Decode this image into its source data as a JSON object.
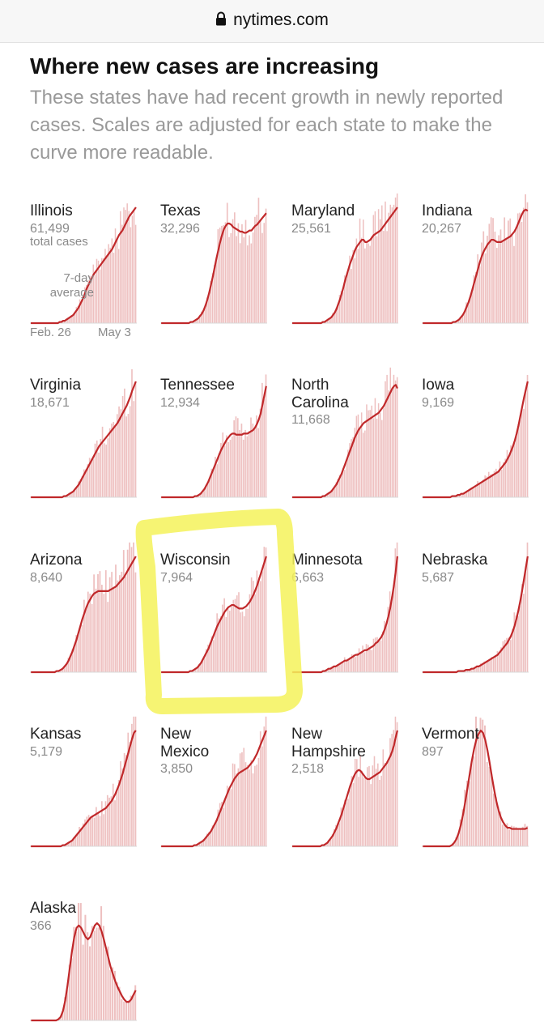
{
  "browser": {
    "url": "nytimes.com",
    "lock_icon": "lock-icon"
  },
  "article": {
    "headline": "Where new cases are increasing",
    "subhead": "These states have had recent growth in newly reported cases. Scales are adjusted for each state to make the curve more readable."
  },
  "legend": {
    "total_label": "total cases",
    "avg_label_1": "7-day",
    "avg_label_2": "average",
    "x_start": "Feb. 26",
    "x_end": "May 3"
  },
  "colors": {
    "line": "#c0282a",
    "bar": "#eec0c0",
    "highlight": "#f4f25a"
  },
  "chart_data": {
    "type": "bar",
    "x_range": [
      "Feb. 26",
      "May 3"
    ],
    "states": [
      {
        "name": "Illinois",
        "total": "61,499",
        "values": [
          0,
          0,
          0,
          0,
          0,
          0,
          0,
          0,
          0,
          0,
          0,
          0,
          0,
          0,
          0,
          0,
          0,
          1,
          1,
          2,
          2,
          3,
          4,
          5,
          6,
          7,
          9,
          11,
          13,
          16,
          19,
          22,
          26,
          30,
          33,
          36,
          39,
          42,
          44,
          46,
          48,
          50,
          52,
          54,
          56,
          58,
          60,
          62,
          64,
          67,
          70,
          73,
          76,
          78,
          80,
          83,
          86,
          89,
          92,
          94,
          96,
          98,
          100
        ]
      },
      {
        "name": "Texas",
        "total": "32,296",
        "values": [
          0,
          0,
          0,
          0,
          0,
          0,
          0,
          0,
          0,
          0,
          0,
          0,
          0,
          0,
          0,
          0,
          1,
          1,
          2,
          3,
          4,
          6,
          8,
          11,
          15,
          20,
          26,
          33,
          40,
          48,
          56,
          63,
          70,
          76,
          81,
          84,
          86,
          86,
          85,
          83,
          82,
          81,
          80,
          79,
          79,
          78,
          78,
          79,
          80,
          80,
          82,
          84,
          85,
          87,
          89,
          91,
          93,
          95
        ]
      },
      {
        "name": "Maryland",
        "total": "25,561",
        "values": [
          0,
          0,
          0,
          0,
          0,
          0,
          0,
          0,
          0,
          0,
          0,
          0,
          0,
          0,
          0,
          0,
          0,
          0,
          1,
          1,
          2,
          3,
          4,
          5,
          7,
          9,
          12,
          16,
          20,
          25,
          30,
          36,
          41,
          46,
          51,
          55,
          59,
          63,
          66,
          68,
          70,
          72,
          72,
          70,
          70,
          71,
          72,
          74,
          76,
          77,
          78,
          79,
          80,
          82,
          84,
          86,
          88,
          90,
          92,
          94,
          96,
          98,
          100
        ]
      },
      {
        "name": "Indiana",
        "total": "20,267",
        "values": [
          0,
          0,
          0,
          0,
          0,
          0,
          0,
          0,
          0,
          0,
          0,
          0,
          0,
          0,
          0,
          0,
          1,
          1,
          2,
          3,
          5,
          7,
          10,
          14,
          18,
          23,
          29,
          35,
          41,
          47,
          53,
          58,
          62,
          65,
          68,
          70,
          72,
          72,
          71,
          70,
          70,
          70,
          71,
          72,
          73,
          74,
          75,
          77,
          79,
          82,
          86,
          90,
          94,
          97,
          98,
          97
        ]
      },
      {
        "name": "Virginia",
        "total": "18,671",
        "values": [
          0,
          0,
          0,
          0,
          0,
          0,
          0,
          0,
          0,
          0,
          0,
          0,
          0,
          0,
          0,
          0,
          0,
          0,
          1,
          1,
          2,
          3,
          4,
          5,
          7,
          9,
          11,
          14,
          17,
          20,
          23,
          26,
          29,
          32,
          35,
          38,
          41,
          44,
          46,
          48,
          50,
          52,
          54,
          56,
          58,
          60,
          62,
          64,
          67,
          70,
          73,
          76,
          79,
          83,
          87,
          92,
          96,
          100
        ]
      },
      {
        "name": "Tennessee",
        "total": "12,934",
        "values": [
          0,
          0,
          0,
          0,
          0,
          0,
          0,
          0,
          0,
          0,
          0,
          0,
          0,
          0,
          0,
          0,
          0,
          0,
          1,
          1,
          2,
          3,
          5,
          7,
          10,
          13,
          17,
          21,
          25,
          29,
          33,
          37,
          41,
          44,
          47,
          50,
          52,
          54,
          55,
          55,
          54,
          54,
          54,
          54,
          55,
          55,
          55,
          56,
          57,
          58,
          60,
          63,
          67,
          72,
          80,
          88,
          96
        ]
      },
      {
        "name": "North Carolina",
        "total": "11,668",
        "values": [
          0,
          0,
          0,
          0,
          0,
          0,
          0,
          0,
          0,
          0,
          0,
          0,
          0,
          0,
          0,
          0,
          0,
          0,
          1,
          1,
          2,
          3,
          4,
          5,
          7,
          9,
          11,
          14,
          17,
          20,
          24,
          28,
          32,
          36,
          40,
          44,
          48,
          52,
          55,
          58,
          60,
          62,
          64,
          65,
          66,
          67,
          68,
          69,
          70,
          71,
          72,
          73,
          75,
          77,
          79,
          82,
          85,
          88,
          91,
          94,
          96,
          97,
          94
        ]
      },
      {
        "name": "Iowa",
        "total": "9,169",
        "values": [
          0,
          0,
          0,
          0,
          0,
          0,
          0,
          0,
          0,
          0,
          0,
          0,
          0,
          0,
          0,
          0,
          1,
          1,
          1,
          2,
          2,
          3,
          3,
          4,
          5,
          6,
          7,
          8,
          9,
          10,
          11,
          12,
          13,
          14,
          15,
          16,
          17,
          18,
          19,
          20,
          21,
          22,
          24,
          26,
          28,
          30,
          33,
          36,
          40,
          44,
          49,
          55,
          62,
          70,
          78,
          86,
          93,
          100
        ]
      },
      {
        "name": "Arizona",
        "total": "8,640",
        "values": [
          0,
          0,
          0,
          0,
          0,
          0,
          0,
          0,
          0,
          0,
          0,
          0,
          0,
          1,
          1,
          2,
          3,
          5,
          7,
          10,
          14,
          18,
          23,
          28,
          34,
          40,
          46,
          51,
          56,
          60,
          63,
          66,
          68,
          69,
          70,
          70,
          70,
          70,
          70,
          70,
          71,
          72,
          73,
          74,
          76,
          78,
          80,
          82,
          85,
          88,
          91,
          94,
          97,
          100
        ]
      },
      {
        "name": "Wisconsin",
        "total": "7,964",
        "values": [
          0,
          0,
          0,
          0,
          0,
          0,
          0,
          0,
          0,
          0,
          0,
          0,
          0,
          0,
          0,
          0,
          1,
          1,
          2,
          3,
          4,
          6,
          8,
          11,
          14,
          17,
          20,
          24,
          28,
          32,
          36,
          40,
          43,
          46,
          49,
          52,
          54,
          56,
          57,
          58,
          58,
          57,
          56,
          55,
          55,
          55,
          56,
          57,
          59,
          61,
          64,
          67,
          71,
          75,
          80,
          85,
          90,
          95,
          100
        ]
      },
      {
        "name": "Minnesota",
        "total": "6,663",
        "values": [
          0,
          0,
          0,
          0,
          0,
          0,
          0,
          0,
          0,
          0,
          0,
          0,
          0,
          0,
          0,
          0,
          0,
          1,
          1,
          2,
          3,
          3,
          4,
          5,
          5,
          6,
          7,
          8,
          9,
          10,
          10,
          11,
          12,
          13,
          14,
          15,
          15,
          16,
          17,
          18,
          19,
          19,
          20,
          21,
          22,
          23,
          25,
          26,
          28,
          30,
          33,
          37,
          42,
          48,
          55,
          64,
          74,
          86,
          100
        ]
      },
      {
        "name": "Nebraska",
        "total": "5,687",
        "values": [
          0,
          0,
          0,
          0,
          0,
          0,
          0,
          0,
          0,
          0,
          0,
          0,
          0,
          0,
          0,
          0,
          0,
          0,
          0,
          1,
          1,
          1,
          1,
          2,
          2,
          2,
          3,
          3,
          4,
          5,
          5,
          6,
          7,
          8,
          9,
          10,
          11,
          12,
          13,
          14,
          15,
          17,
          19,
          21,
          23,
          25,
          28,
          31,
          35,
          40,
          46,
          53,
          61,
          70,
          80,
          90,
          100
        ]
      },
      {
        "name": "Kansas",
        "total": "5,179",
        "values": [
          0,
          0,
          0,
          0,
          0,
          0,
          0,
          0,
          0,
          0,
          0,
          0,
          0,
          0,
          0,
          0,
          0,
          1,
          1,
          2,
          3,
          4,
          5,
          7,
          9,
          11,
          13,
          15,
          17,
          19,
          21,
          23,
          25,
          26,
          27,
          28,
          29,
          30,
          31,
          32,
          33,
          35,
          37,
          39,
          42,
          45,
          49,
          53,
          58,
          63,
          69,
          75,
          81,
          87,
          93,
          98,
          100
        ]
      },
      {
        "name": "New Mexico",
        "total": "3,850",
        "values": [
          0,
          0,
          0,
          0,
          0,
          0,
          0,
          0,
          0,
          0,
          0,
          0,
          0,
          0,
          0,
          0,
          0,
          0,
          1,
          1,
          2,
          3,
          4,
          5,
          7,
          9,
          11,
          13,
          16,
          19,
          22,
          26,
          30,
          34,
          38,
          42,
          46,
          50,
          53,
          56,
          59,
          61,
          63,
          64,
          65,
          66,
          67,
          68,
          70,
          72,
          74,
          77,
          80,
          84,
          88,
          92,
          96,
          100
        ]
      },
      {
        "name": "New Hampshire",
        "total": "2,518",
        "values": [
          0,
          0,
          0,
          0,
          0,
          0,
          0,
          0,
          0,
          0,
          0,
          0,
          0,
          0,
          0,
          0,
          0,
          1,
          1,
          2,
          3,
          5,
          7,
          9,
          12,
          15,
          19,
          23,
          27,
          32,
          37,
          42,
          47,
          52,
          56,
          60,
          63,
          65,
          66,
          65,
          63,
          61,
          59,
          58,
          58,
          59,
          60,
          61,
          62,
          63,
          64,
          66,
          68,
          70,
          72,
          75,
          78,
          82,
          87,
          94,
          100
        ]
      },
      {
        "name": "Vermont",
        "total": "897",
        "values": [
          0,
          0,
          0,
          0,
          0,
          0,
          0,
          0,
          0,
          0,
          0,
          0,
          0,
          1,
          3,
          6,
          11,
          18,
          27,
          38,
          50,
          62,
          74,
          84,
          92,
          97,
          100,
          98,
          92,
          83,
          72,
          60,
          49,
          39,
          31,
          25,
          21,
          18,
          16,
          16,
          15,
          15,
          15,
          15,
          15,
          15,
          15,
          16
        ]
      },
      {
        "name": "Alaska",
        "total": "366",
        "values": [
          0,
          0,
          0,
          0,
          0,
          0,
          0,
          0,
          0,
          0,
          0,
          0,
          1,
          3,
          8,
          17,
          30,
          45,
          60,
          72,
          80,
          82,
          80,
          76,
          72,
          70,
          72,
          77,
          82,
          84,
          82,
          77,
          70,
          62,
          54,
          46,
          40,
          34,
          29,
          25,
          21,
          18,
          16,
          16,
          18,
          22,
          26
        ]
      }
    ]
  }
}
